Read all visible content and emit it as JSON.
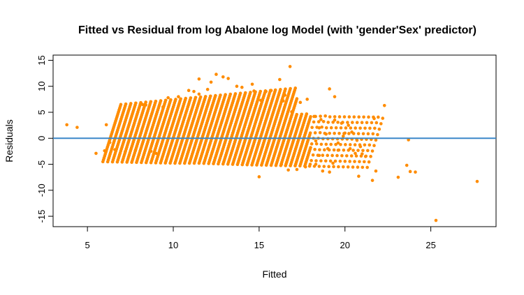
{
  "chart_data": {
    "type": "scatter",
    "title": "Fitted vs Residual from log Abalone log Model (with 'gender'Sex' predictor)",
    "xlabel": "Fitted",
    "ylabel": "Residuals",
    "xlim": [
      3,
      28.8
    ],
    "ylim": [
      -17,
      16
    ],
    "x_ticks": [
      5,
      10,
      15,
      20,
      25
    ],
    "y_ticks": [
      -15,
      -10,
      -5,
      0,
      5,
      10,
      15
    ],
    "grid": false,
    "reference_line": {
      "y": 0,
      "color": "#3a87c8"
    },
    "point_color": "#ff8c00",
    "line_color": "#3a87c8",
    "band_model": {
      "x_start": 5.9,
      "x_step": 0.28,
      "band_count": 56,
      "y_jitter_step": 0.35,
      "y_min": -4.5,
      "y_max": 6.5
    },
    "points": [
      [
        3.8,
        2.6
      ],
      [
        4.4,
        2.1
      ],
      [
        5.5,
        -2.9
      ],
      [
        6.0,
        -2.4
      ],
      [
        6.1,
        2.6
      ],
      [
        6.3,
        -0.8
      ],
      [
        6.6,
        -2.2
      ],
      [
        7.2,
        -2.6
      ],
      [
        7.8,
        -2.3
      ],
      [
        8.2,
        6.5
      ],
      [
        8.4,
        6.4
      ],
      [
        9.0,
        -2.9
      ],
      [
        8.7,
        -2.5
      ],
      [
        9.7,
        7.8
      ],
      [
        9.4,
        6.0
      ],
      [
        10.3,
        8.0
      ],
      [
        10.9,
        9.2
      ],
      [
        11.2,
        9.0
      ],
      [
        11.5,
        8.5
      ],
      [
        11.5,
        11.4
      ],
      [
        12.0,
        9.4
      ],
      [
        12.2,
        10.8
      ],
      [
        12.5,
        12.3
      ],
      [
        12.9,
        11.8
      ],
      [
        13.2,
        11.5
      ],
      [
        13.7,
        10.0
      ],
      [
        14.0,
        9.8
      ],
      [
        14.6,
        10.4
      ],
      [
        14.7,
        9.1
      ],
      [
        15.1,
        7.3
      ],
      [
        15.4,
        9.0
      ],
      [
        15.7,
        9.2
      ],
      [
        16.2,
        11.3
      ],
      [
        16.5,
        8.3
      ],
      [
        16.4,
        7.2
      ],
      [
        16.8,
        13.8
      ],
      [
        16.9,
        5.1
      ],
      [
        17.4,
        6.9
      ],
      [
        17.8,
        7.5
      ],
      [
        18.2,
        4.2
      ],
      [
        18.6,
        3.6
      ],
      [
        18.5,
        2.0
      ],
      [
        17.7,
        1.0
      ],
      [
        18.3,
        -0.5
      ],
      [
        18.9,
        0.8
      ],
      [
        19.1,
        9.5
      ],
      [
        19.4,
        8.0
      ],
      [
        19.4,
        3.5
      ],
      [
        19.8,
        2.9
      ],
      [
        20.0,
        1.0
      ],
      [
        20.2,
        2.5
      ],
      [
        20.4,
        1.2
      ],
      [
        19.6,
        -0.9
      ],
      [
        20.3,
        -2.0
      ],
      [
        20.6,
        -2.9
      ],
      [
        20.9,
        -1.6
      ],
      [
        21.2,
        -3.5
      ],
      [
        19.0,
        -2.0
      ],
      [
        18.5,
        -3.3
      ],
      [
        18.3,
        -5.0
      ],
      [
        18.7,
        -6.3
      ],
      [
        19.1,
        -6.5
      ],
      [
        19.3,
        -4.8
      ],
      [
        17.7,
        -5.5
      ],
      [
        17.2,
        -6.0
      ],
      [
        16.7,
        -6.1
      ],
      [
        16.3,
        -5.0
      ],
      [
        15.0,
        -7.4
      ],
      [
        19.6,
        -2.3
      ],
      [
        20.8,
        -7.3
      ],
      [
        21.6,
        -8.1
      ],
      [
        21.8,
        -6.3
      ],
      [
        21.7,
        3.8
      ],
      [
        22.3,
        6.3
      ],
      [
        23.1,
        -7.5
      ],
      [
        23.6,
        -5.2
      ],
      [
        23.7,
        -0.3
      ],
      [
        23.8,
        -6.4
      ],
      [
        24.1,
        -6.5
      ],
      [
        25.3,
        -15.8
      ],
      [
        27.7,
        -8.3
      ],
      [
        19.9,
        0.4
      ],
      [
        20.7,
        -0.4
      ],
      [
        21.0,
        -3.0
      ]
    ]
  }
}
